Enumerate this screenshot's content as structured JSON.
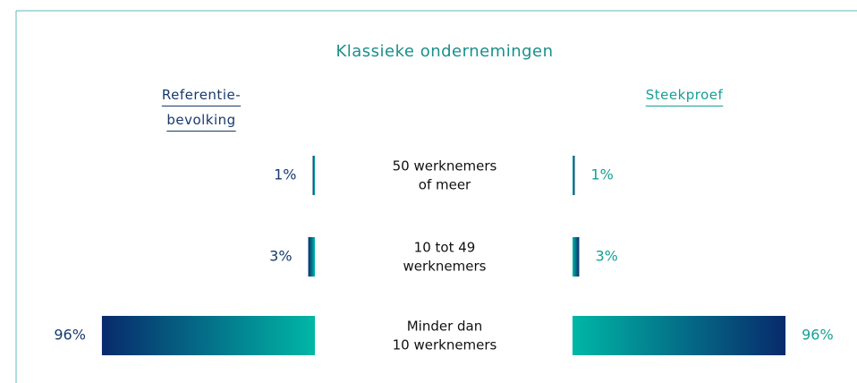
{
  "chart_data": {
    "type": "butterfly",
    "title": "Klassieke ondernemingen",
    "categories": [
      [
        "50 werknemers",
        "of meer"
      ],
      [
        "10 tot 49",
        "werknemers"
      ],
      [
        "Minder dan",
        "10 werknemers"
      ]
    ],
    "gradient": [
      "#082a6b",
      "#00b7a6"
    ],
    "series": [
      {
        "name": "Referentie-bevolking",
        "color": "#163a6e",
        "values": [
          1,
          3,
          96
        ],
        "value_labels": [
          "1%",
          "3%",
          "96%"
        ]
      },
      {
        "name": "Steekproef",
        "color": "#159f97",
        "values": [
          1,
          3,
          96
        ],
        "value_labels": [
          "1%",
          "3%",
          "96%"
        ]
      }
    ]
  }
}
